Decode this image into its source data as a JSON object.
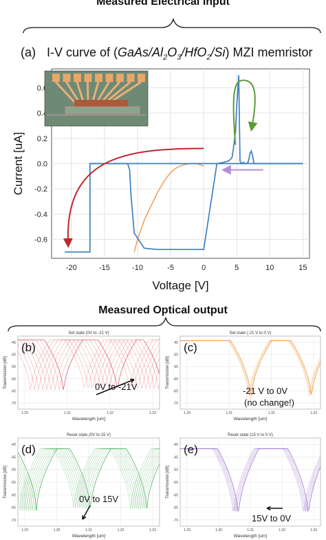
{
  "top": {
    "section_title": "Measured Electrical input"
  },
  "iv": {
    "panel_label": "(a)",
    "title_prefix": "I-V curve of (",
    "title_material": "GaAs/Al",
    "sub1": "2",
    "title_mid1": "O",
    "sub2": "3",
    "title_mid2": "/HfO",
    "sub3": "2",
    "title_mid3": "/Si",
    "title_suffix": ") MZI memristor"
  },
  "bottom": {
    "section_title": "Measured Optical output"
  },
  "panels": [
    {
      "label": "(b)",
      "title": "Set state (0V to -21 V)",
      "annotation": "0V to -21V",
      "color": "#d9434f"
    },
    {
      "label": "(c)",
      "title": "Set state (-21 V to 0 V)",
      "annotation": "-21 V to 0V",
      "annotation2": "(no change!)",
      "color": "#f08a24"
    },
    {
      "label": "(d)",
      "title": "Reset state (0V to 15 V)",
      "annotation": "0V to 15V",
      "color": "#3aa34a"
    },
    {
      "label": "(e)",
      "title": "Reset state (15 V to 0 V)",
      "annotation": "15V to 0V",
      "color": "#8f63c4"
    }
  ],
  "chart_data": [
    {
      "type": "line",
      "title": "I-V curve of (GaAs/Al2O3/HfO2/Si) MZI memristor",
      "xlabel": "Voltage [V]",
      "ylabel": "Current [uA]",
      "xlim": [
        -23,
        16
      ],
      "ylim": [
        -0.75,
        0.75
      ],
      "xticks": [
        -20,
        -15,
        -10,
        -5,
        0,
        5,
        10,
        15
      ],
      "yticks": [
        -0.6,
        -0.4,
        -0.2,
        0.0,
        0.2,
        0.4,
        0.6
      ],
      "grid": true,
      "series": [
        {
          "color": "#3a7fc0",
          "x": [
            -21,
            -17.2,
            -17.2,
            -11.5,
            -11.2,
            -11.0,
            -10.5,
            -9.0,
            -7.0,
            0,
            2,
            3,
            3.7,
            4,
            4.3,
            4.5,
            4.8,
            5.0,
            5.3,
            5.5,
            5.7,
            6.0,
            6.2,
            6.5,
            6.7,
            6.9,
            7.0,
            7.2,
            7.4,
            7.6,
            8.0,
            15
          ],
          "y": [
            -0.7,
            -0.7,
            0.0,
            0.0,
            -0.05,
            -0.25,
            -0.55,
            -0.67,
            -0.68,
            -0.68,
            0.0,
            0.01,
            0.02,
            0.03,
            0.05,
            0.12,
            0.25,
            0.45,
            0.7,
            0.02,
            0.0,
            0.01,
            0.0,
            0.0,
            0.01,
            0.05,
            0.08,
            0.1,
            0.06,
            0.0,
            0.0,
            0.0
          ]
        }
      ],
      "aux_series": [
        {
          "color": "#f5a05a",
          "x": [
            -10.5,
            -10.0,
            -9.0,
            -8.0,
            -7.0,
            -6.0,
            -5.0,
            -4.0,
            -3.0,
            -2.0,
            -1.0,
            0.0
          ],
          "y": [
            -0.7,
            -0.6,
            -0.45,
            -0.34,
            -0.23,
            -0.14,
            -0.07,
            -0.03,
            -0.01,
            0.0,
            0.0,
            -0.02
          ]
        }
      ]
    },
    {
      "type": "line",
      "title": "Set state (0V to -21 V)",
      "xlabel": "Wavelength [um]",
      "ylabel": "Transmission [dB]",
      "xticks": [
        "1.29",
        "1.31",
        "1.32",
        "1.33"
      ],
      "yticks": [
        -45,
        -50,
        -55,
        -60,
        -65,
        -70
      ]
    },
    {
      "type": "line",
      "title": "Set state (-21 V to 0 V)",
      "xlabel": "Wavelength [um]",
      "ylabel": "Transmission [dB]",
      "xticks": [
        "1.29",
        "1.31",
        "1.32",
        "1.33"
      ],
      "yticks": [
        -45,
        -50,
        -55,
        -60,
        -65,
        -70
      ]
    },
    {
      "type": "line",
      "title": "Reset state (0V to 15 V)",
      "xlabel": "Wavelength [um]",
      "ylabel": "Transmission [dB]",
      "xticks": [
        "1.29",
        "1.30",
        "1.31",
        "1.32",
        "1.33"
      ],
      "yticks": [
        -40,
        -45,
        -50,
        -55,
        -60,
        -65,
        -70
      ]
    },
    {
      "type": "line",
      "title": "Reset state (15 V to 0 V)",
      "xlabel": "Wavelength [um]",
      "ylabel": "Transmission [dB]",
      "xticks": [
        "1.29",
        "1.30",
        "1.31",
        "1.32",
        "1.33"
      ],
      "yticks": [
        -40,
        -45,
        -50,
        -55,
        -60,
        -65,
        -70
      ]
    }
  ]
}
